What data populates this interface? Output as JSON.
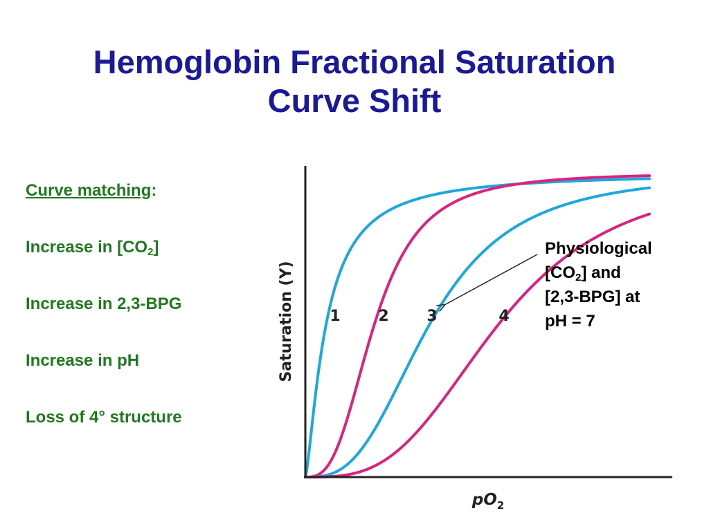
{
  "title": {
    "line1": "Hemoglobin Fractional Saturation",
    "line2": "Curve Shift"
  },
  "left_panel": {
    "heading": "Curve matching",
    "heading_colon": ":",
    "items": [
      {
        "text": "Increase in [CO",
        "sub": "2",
        "after": "]"
      },
      {
        "text": "Increase in 2,3-BPG"
      },
      {
        "text": "Increase in pH"
      },
      {
        "text": "Loss of 4° structure"
      }
    ],
    "text_color": "#1f7a1f"
  },
  "annotation": {
    "line1": "Physiological",
    "line2_pre": "[CO",
    "line2_sub": "2",
    "line2_post": "] and",
    "line3": "[2,3-BPG] at",
    "line4": "pH = 7"
  },
  "chart": {
    "ylabel": "Saturation (Y)",
    "xlabel_main": "pO",
    "xlabel_sub": "2",
    "curves": [
      {
        "label": "1",
        "color": "#1ea7dc",
        "p50": 0.06,
        "n": 1.4
      },
      {
        "label": "2",
        "color": "#d9237f",
        "p50": 0.2,
        "n": 2.9
      },
      {
        "label": "3",
        "color": "#1ea7dc",
        "p50": 0.36,
        "n": 2.9
      },
      {
        "label": "4",
        "color": "#d9237f",
        "p50": 0.56,
        "n": 3.2
      }
    ]
  }
}
